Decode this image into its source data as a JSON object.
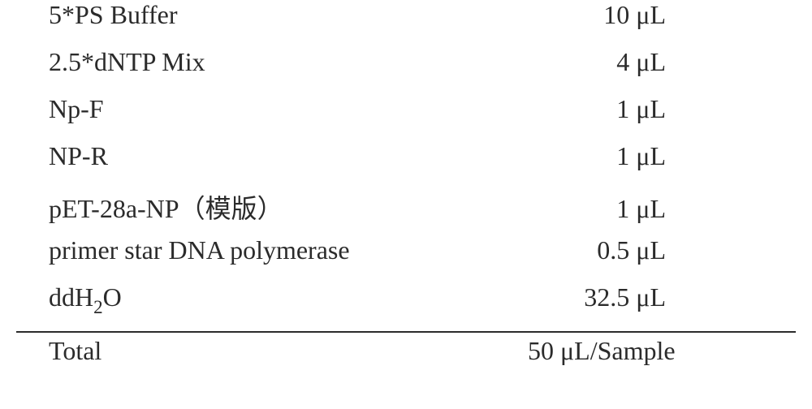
{
  "table": {
    "font_family": "Times New Roman",
    "text_color": "#2b2b2b",
    "border_color": "#2b2b2b",
    "background_color": "#ffffff",
    "font_size_pt": 24,
    "unit": "μL",
    "rows": [
      {
        "component": "5*PS Buffer",
        "value": "10",
        "unit": "μL"
      },
      {
        "component": "2.5*dNTP Mix",
        "value": "4",
        "unit": "μL"
      },
      {
        "component": "Np-F",
        "value": "1",
        "unit": "μL"
      },
      {
        "component": "NP-R",
        "value": "1",
        "unit": "μL"
      },
      {
        "component_prefix": "pET-28a-NP",
        "component_cn": "（模版）",
        "value": "1",
        "unit": "μL"
      },
      {
        "component": "primer star DNA polymerase",
        "value": "0.5",
        "unit": "μL"
      },
      {
        "component_prefix": "ddH",
        "component_sub": "2",
        "component_suffix": "O",
        "value": "32.5",
        "unit": "μL"
      }
    ],
    "total": {
      "label": "Total",
      "value": "50",
      "unit": "μL/Sample"
    }
  }
}
